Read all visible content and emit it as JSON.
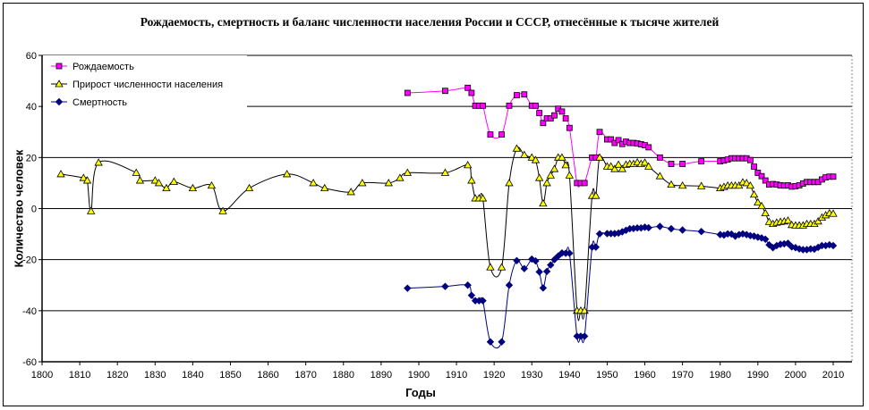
{
  "chart_data": {
    "type": "line",
    "title": "Рождаемость, смертность и баланс численности населения России и СССР, отнесённые к тысяче жителей",
    "xlabel": "Годы",
    "ylabel": "Количество человек",
    "xlim": [
      1800,
      2010
    ],
    "ylim": [
      -60,
      60
    ],
    "x_ticks": [
      1800,
      1810,
      1820,
      1830,
      1840,
      1850,
      1860,
      1870,
      1880,
      1890,
      1900,
      1910,
      1920,
      1930,
      1940,
      1950,
      1960,
      1970,
      1980,
      1990,
      2000,
      2010
    ],
    "y_ticks": [
      -60,
      -40,
      -20,
      0,
      20,
      40,
      60
    ],
    "grid": "horizontal",
    "legend_position": "top-left",
    "series": [
      {
        "name": "Рождаемость",
        "color": "#ff00ff",
        "marker": "square",
        "points": [
          [
            1897,
            45.3
          ],
          [
            1907,
            46.1
          ],
          [
            1913,
            47.3
          ],
          [
            1914,
            45.3
          ],
          [
            1915,
            40.3
          ],
          [
            1916,
            40.3
          ],
          [
            1917,
            40.3
          ],
          [
            1919,
            29
          ],
          [
            1922,
            29
          ],
          [
            1924,
            40.3
          ],
          [
            1926,
            44.4
          ],
          [
            1928,
            44.7
          ],
          [
            1930,
            40.3
          ],
          [
            1931,
            40.3
          ],
          [
            1932,
            37.4
          ],
          [
            1933,
            33.5
          ],
          [
            1934,
            35.3
          ],
          [
            1935,
            35.3
          ],
          [
            1936,
            36.5
          ],
          [
            1937,
            39.1
          ],
          [
            1938,
            38
          ],
          [
            1939,
            35.3
          ],
          [
            1940,
            31.6
          ],
          [
            1942,
            10
          ],
          [
            1943,
            10
          ],
          [
            1944,
            10
          ],
          [
            1946,
            20
          ],
          [
            1947,
            20
          ],
          [
            1948,
            30
          ],
          [
            1950,
            27.1
          ],
          [
            1951,
            27.1
          ],
          [
            1952,
            25.7
          ],
          [
            1953,
            26.8
          ],
          [
            1954,
            25.3
          ],
          [
            1955,
            26.2
          ],
          [
            1956,
            25.7
          ],
          [
            1957,
            25.7
          ],
          [
            1958,
            25.5
          ],
          [
            1959,
            25.2
          ],
          [
            1960,
            24.8
          ],
          [
            1961,
            24
          ],
          [
            1964,
            20
          ],
          [
            1967,
            17.5
          ],
          [
            1970,
            17.5
          ],
          [
            1975,
            18.5
          ],
          [
            1980,
            18.5
          ],
          [
            1981,
            18.8
          ],
          [
            1982,
            19.2
          ],
          [
            1983,
            19.7
          ],
          [
            1984,
            19.7
          ],
          [
            1985,
            19.7
          ],
          [
            1986,
            19.7
          ],
          [
            1987,
            19.7
          ],
          [
            1988,
            19
          ],
          [
            1989,
            16.4
          ],
          [
            1990,
            14
          ],
          [
            1991,
            12.7
          ],
          [
            1992,
            11
          ],
          [
            1993,
            9.4
          ],
          [
            1994,
            9.6
          ],
          [
            1995,
            9.4
          ],
          [
            1996,
            9.1
          ],
          [
            1997,
            9
          ],
          [
            1998,
            9.1
          ],
          [
            1999,
            8.6
          ],
          [
            2000,
            8.8
          ],
          [
            2001,
            9.1
          ],
          [
            2002,
            9.8
          ],
          [
            2003,
            10.4
          ],
          [
            2004,
            10.4
          ],
          [
            2005,
            10.4
          ],
          [
            2006,
            10.4
          ],
          [
            2007,
            11.4
          ],
          [
            2008,
            12.2
          ],
          [
            2009,
            12.5
          ],
          [
            2010,
            12.5
          ]
        ]
      },
      {
        "name": "Прирост численности населения",
        "color": "#ffff00",
        "marker": "triangle",
        "points": [
          [
            1805,
            13.5
          ],
          [
            1811,
            12
          ],
          [
            1812,
            11
          ],
          [
            1813,
            -1
          ],
          [
            1815,
            18
          ],
          [
            1825,
            14
          ],
          [
            1826,
            11
          ],
          [
            1830,
            11
          ],
          [
            1831,
            10
          ],
          [
            1833,
            8
          ],
          [
            1835,
            10.5
          ],
          [
            1840,
            8
          ],
          [
            1845,
            9
          ],
          [
            1848,
            -1
          ],
          [
            1855,
            8
          ],
          [
            1865,
            13.5
          ],
          [
            1872,
            10
          ],
          [
            1875,
            8
          ],
          [
            1882,
            6.5
          ],
          [
            1885,
            10
          ],
          [
            1892,
            10
          ],
          [
            1895,
            12
          ],
          [
            1897,
            14
          ],
          [
            1907,
            14
          ],
          [
            1913,
            17
          ],
          [
            1914,
            11
          ],
          [
            1915,
            4
          ],
          [
            1916,
            4
          ],
          [
            1917,
            4
          ],
          [
            1919,
            -23
          ],
          [
            1922,
            -23
          ],
          [
            1924,
            10
          ],
          [
            1926,
            23.5
          ],
          [
            1928,
            21
          ],
          [
            1930,
            20
          ],
          [
            1931,
            19
          ],
          [
            1932,
            12
          ],
          [
            1933,
            2
          ],
          [
            1934,
            10
          ],
          [
            1935,
            13
          ],
          [
            1936,
            15.5
          ],
          [
            1937,
            20
          ],
          [
            1938,
            20
          ],
          [
            1939,
            17
          ],
          [
            1940,
            13
          ],
          [
            1942,
            -40
          ],
          [
            1943,
            -40
          ],
          [
            1944,
            -40
          ],
          [
            1946,
            5
          ],
          [
            1947,
            5
          ],
          [
            1948,
            20
          ],
          [
            1950,
            16.5
          ],
          [
            1951,
            16.5
          ],
          [
            1952,
            15.5
          ],
          [
            1953,
            17.2
          ],
          [
            1954,
            15.5
          ],
          [
            1955,
            17.2
          ],
          [
            1956,
            17.5
          ],
          [
            1957,
            17.5
          ],
          [
            1958,
            18.1
          ],
          [
            1959,
            17.5
          ],
          [
            1960,
            18
          ],
          [
            1961,
            16.5
          ],
          [
            1964,
            12.7
          ],
          [
            1967,
            9.4
          ],
          [
            1970,
            9
          ],
          [
            1975,
            8.8
          ],
          [
            1980,
            8
          ],
          [
            1981,
            8.5
          ],
          [
            1982,
            9
          ],
          [
            1983,
            9
          ],
          [
            1984,
            9
          ],
          [
            1985,
            9
          ],
          [
            1986,
            10.3
          ],
          [
            1987,
            10
          ],
          [
            1988,
            9
          ],
          [
            1989,
            5.5
          ],
          [
            1990,
            2.4
          ],
          [
            1991,
            1
          ],
          [
            1992,
            -1.8
          ],
          [
            1993,
            -5.2
          ],
          [
            1994,
            -6
          ],
          [
            1995,
            -5.5
          ],
          [
            1996,
            -5.2
          ],
          [
            1997,
            -5
          ],
          [
            1998,
            -4.7
          ],
          [
            1999,
            -6.4
          ],
          [
            2000,
            -6.6
          ],
          [
            2001,
            -6.6
          ],
          [
            2002,
            -6.6
          ],
          [
            2003,
            -6
          ],
          [
            2004,
            -6
          ],
          [
            2005,
            -6
          ],
          [
            2006,
            -5
          ],
          [
            2007,
            -3.5
          ],
          [
            2008,
            -2.6
          ],
          [
            2009,
            -1.8
          ],
          [
            2010,
            -2
          ]
        ]
      },
      {
        "name": "Смертность",
        "color": "#000080",
        "marker": "diamond",
        "points": [
          [
            1897,
            -31.2
          ],
          [
            1907,
            -30.5
          ],
          [
            1913,
            -30
          ],
          [
            1914,
            -34
          ],
          [
            1915,
            -36.1
          ],
          [
            1916,
            -36.1
          ],
          [
            1917,
            -36.1
          ],
          [
            1919,
            -52.2
          ],
          [
            1922,
            -52.2
          ],
          [
            1924,
            -30
          ],
          [
            1926,
            -20.4
          ],
          [
            1928,
            -23.5
          ],
          [
            1930,
            -19.8
          ],
          [
            1931,
            -20.5
          ],
          [
            1932,
            -24.8
          ],
          [
            1933,
            -31.1
          ],
          [
            1934,
            -24.6
          ],
          [
            1935,
            -22.1
          ],
          [
            1936,
            -20
          ],
          [
            1937,
            -18.6
          ],
          [
            1938,
            -17.4
          ],
          [
            1939,
            -17.5
          ],
          [
            1940,
            -17.5
          ],
          [
            1942,
            -50
          ],
          [
            1943,
            -50
          ],
          [
            1944,
            -50
          ],
          [
            1946,
            -15.1
          ],
          [
            1947,
            -15.1
          ],
          [
            1948,
            -9.9
          ],
          [
            1950,
            -9.8
          ],
          [
            1951,
            -9.8
          ],
          [
            1952,
            -9.8
          ],
          [
            1953,
            -9.6
          ],
          [
            1954,
            -9.1
          ],
          [
            1955,
            -8.5
          ],
          [
            1956,
            -7.9
          ],
          [
            1957,
            -7.8
          ],
          [
            1958,
            -7.6
          ],
          [
            1959,
            -7.6
          ],
          [
            1960,
            -7.3
          ],
          [
            1961,
            -7.5
          ],
          [
            1964,
            -7
          ],
          [
            1967,
            -7.9
          ],
          [
            1970,
            -8.4
          ],
          [
            1975,
            -9
          ],
          [
            1980,
            -10.2
          ],
          [
            1981,
            -10.4
          ],
          [
            1982,
            -9.9
          ],
          [
            1983,
            -10
          ],
          [
            1984,
            -10.8
          ],
          [
            1985,
            -10.2
          ],
          [
            1986,
            -9.9
          ],
          [
            1987,
            -10.2
          ],
          [
            1988,
            -10.6
          ],
          [
            1989,
            -10.8
          ],
          [
            1990,
            -11.2
          ],
          [
            1991,
            -11.5
          ],
          [
            1992,
            -12
          ],
          [
            1993,
            -14.2
          ],
          [
            1994,
            -15.3
          ],
          [
            1995,
            -14.5
          ],
          [
            1996,
            -14
          ],
          [
            1997,
            -13.8
          ],
          [
            1998,
            -13.6
          ],
          [
            1999,
            -15
          ],
          [
            2000,
            -15.3
          ],
          [
            2001,
            -15.8
          ],
          [
            2002,
            -16.1
          ],
          [
            2003,
            -16.1
          ],
          [
            2004,
            -15.8
          ],
          [
            2005,
            -15.9
          ],
          [
            2006,
            -15.2
          ],
          [
            2007,
            -14.5
          ],
          [
            2008,
            -14.5
          ],
          [
            2009,
            -14.2
          ],
          [
            2010,
            -14.5
          ]
        ]
      }
    ]
  }
}
